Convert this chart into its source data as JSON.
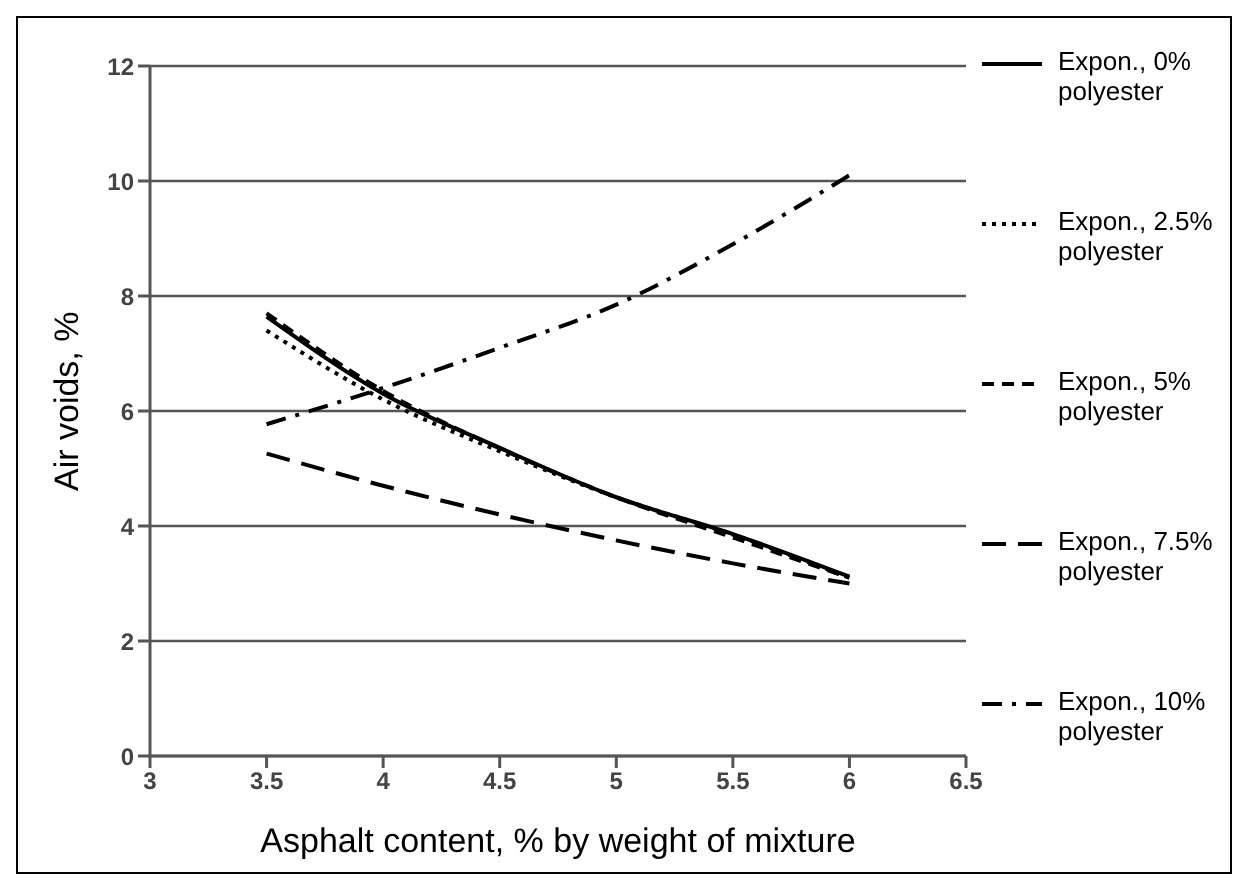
{
  "chart_data": {
    "type": "line",
    "xlabel": "Asphalt content, % by weight of mixture",
    "ylabel": "Air voids, %",
    "x": [
      3.5,
      4,
      4.5,
      5,
      5.5,
      6
    ],
    "xlim": [
      3,
      6.5
    ],
    "xticks": [
      3,
      3.5,
      4,
      4.5,
      5,
      5.5,
      6,
      6.5
    ],
    "ylim": [
      0,
      12
    ],
    "yticks": [
      0,
      2,
      4,
      6,
      8,
      10,
      12
    ],
    "grid": "y",
    "legend": "right",
    "marker": "none",
    "series": [
      {
        "name": "Expon., 0% polyester",
        "color": "#000000",
        "line_style": "solid",
        "values": [
          7.64,
          6.3,
          5.36,
          4.5,
          3.86,
          3.12
        ]
      },
      {
        "name": "Expon., 2.5% polyester",
        "color": "#000000",
        "line_style": "dotted",
        "values": [
          7.4,
          6.2,
          5.3,
          4.5,
          3.85,
          3.1
        ]
      },
      {
        "name": "Expon., 5% polyester",
        "color": "#000000",
        "line_style": "dashed",
        "values": [
          7.7,
          6.35,
          5.35,
          4.5,
          3.8,
          3.1
        ]
      },
      {
        "name": "Expon., 7.5% polyester",
        "color": "#000000",
        "line_style": "longdash",
        "values": [
          5.26,
          4.7,
          4.2,
          3.75,
          3.35,
          3.0
        ]
      },
      {
        "name": "Expon., 10% polyester",
        "color": "#000000",
        "line_style": "dashdot",
        "values": [
          5.77,
          6.4,
          7.1,
          7.85,
          8.9,
          10.1
        ]
      }
    ]
  }
}
